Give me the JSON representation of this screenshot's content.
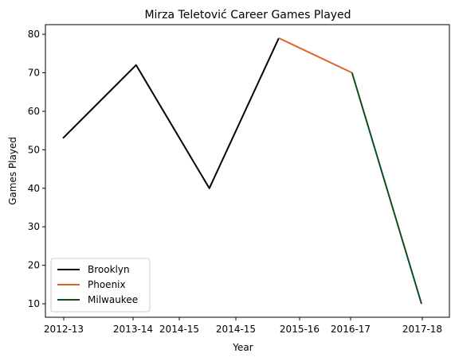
{
  "chart_data": {
    "type": "line",
    "title": "Mirza Teletović Career Games Played",
    "xlabel": "Year",
    "ylabel": "Games Played",
    "x_ticks": [
      "2012-13",
      "2013-14",
      "2014-15",
      "2014-15",
      "2015-16",
      "2016-17",
      "2017-18"
    ],
    "ylim": [
      6.5,
      82.5
    ],
    "y_ticks": [
      10,
      20,
      30,
      40,
      50,
      60,
      70,
      80
    ],
    "grid": false,
    "legend": "lower-left",
    "series": [
      {
        "name": "Brooklyn",
        "color": "#000000",
        "points": [
          [
            2012.9,
            53
          ],
          [
            2013.9,
            72
          ],
          [
            2014.9,
            40
          ],
          [
            2015.85,
            79
          ]
        ]
      },
      {
        "name": "Phoenix",
        "color": "#e0632a",
        "points": [
          [
            2015.85,
            79
          ],
          [
            2016.85,
            70
          ]
        ]
      },
      {
        "name": "Milwaukee",
        "color": "#0d4d22",
        "points": [
          [
            2016.85,
            70
          ],
          [
            2017.8,
            10
          ]
        ]
      }
    ]
  }
}
